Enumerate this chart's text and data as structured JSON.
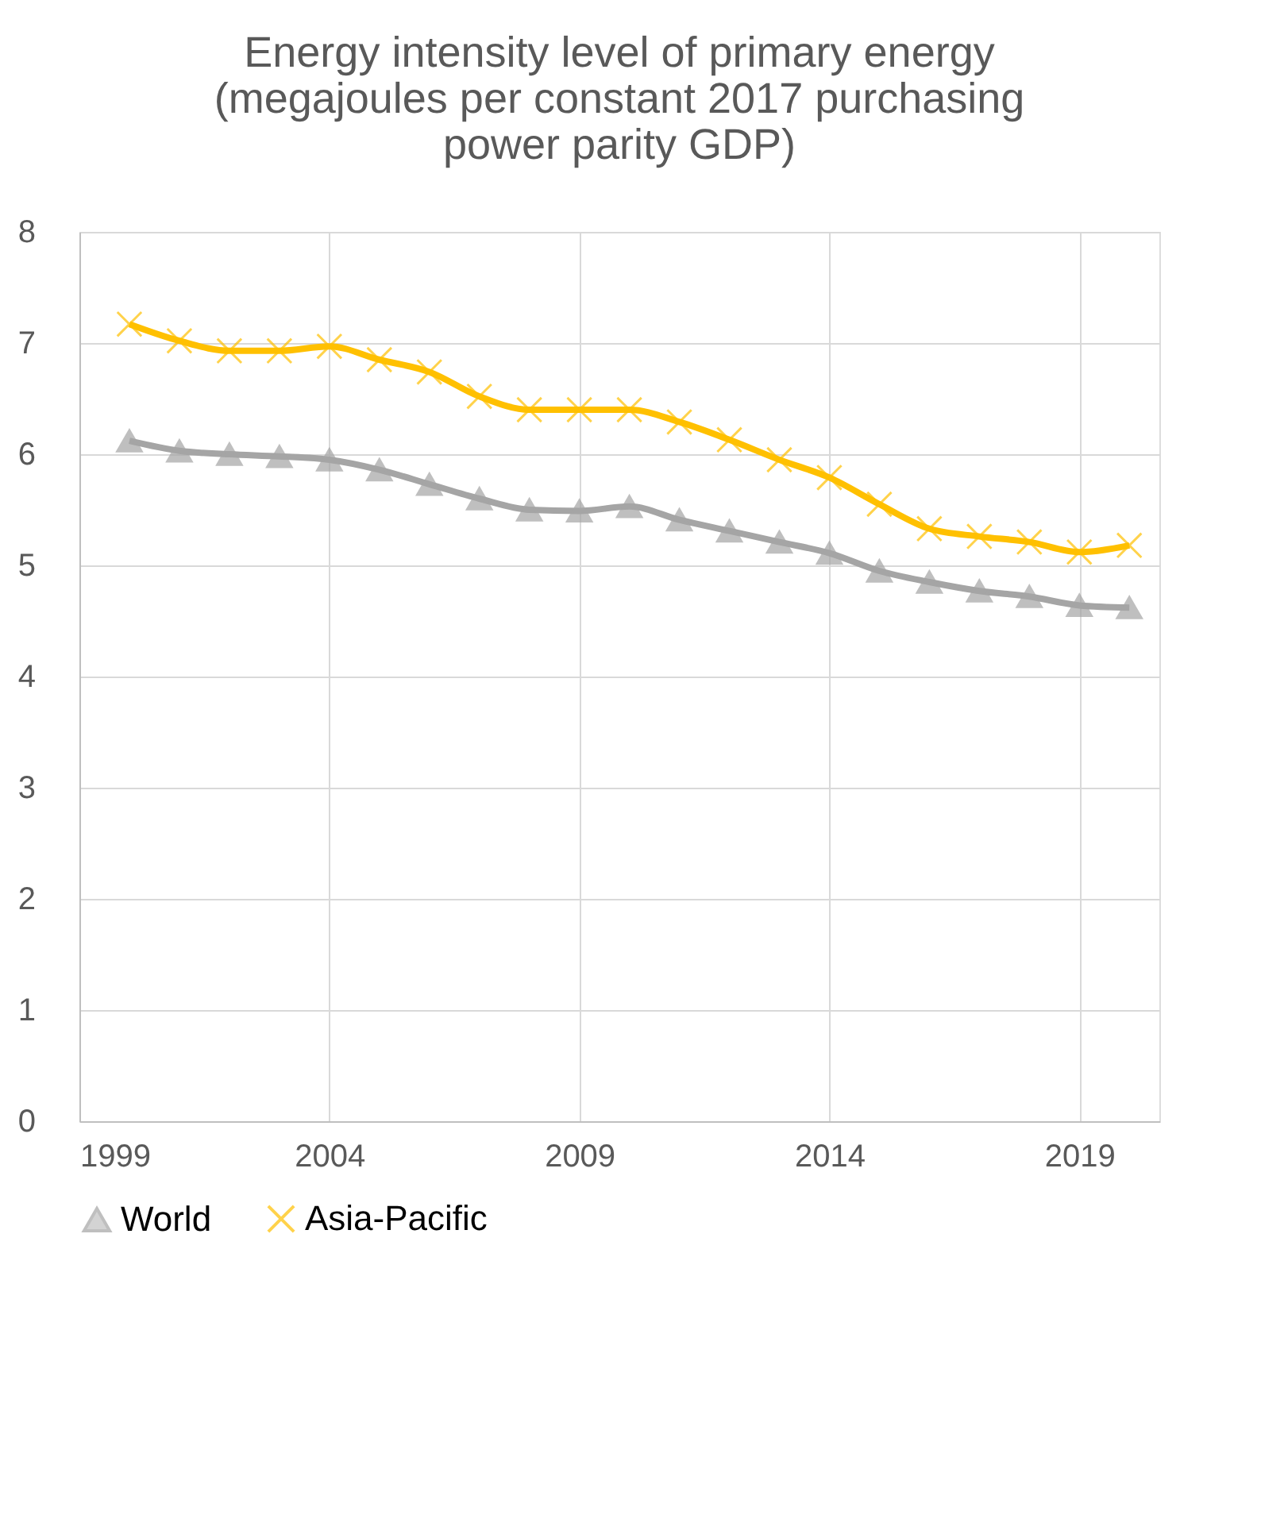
{
  "chart_data": {
    "type": "line",
    "title": "Energy intensity level of primary energy (megajoules per constant 2017 purchasing power parity GDP)",
    "x": [
      2000,
      2001,
      2002,
      2003,
      2004,
      2005,
      2006,
      2007,
      2008,
      2009,
      2010,
      2011,
      2012,
      2013,
      2014,
      2015,
      2016,
      2017,
      2018,
      2019,
      2020
    ],
    "series": [
      {
        "name": "World",
        "color": "#a5a5a5",
        "marker": "triangle",
        "values": [
          6.12,
          6.03,
          6.0,
          5.98,
          5.95,
          5.86,
          5.73,
          5.6,
          5.5,
          5.49,
          5.53,
          5.41,
          5.31,
          5.21,
          5.11,
          4.95,
          4.85,
          4.77,
          4.72,
          4.64,
          4.62
        ]
      },
      {
        "name": "Asia-Pacific",
        "color": "#ffc000",
        "marker": "cross",
        "values": [
          7.17,
          7.02,
          6.93,
          6.93,
          6.97,
          6.85,
          6.74,
          6.52,
          6.4,
          6.4,
          6.4,
          6.29,
          6.13,
          5.95,
          5.79,
          5.55,
          5.33,
          5.26,
          5.21,
          5.12,
          5.18
        ]
      }
    ],
    "xlim": [
      1999,
      2020.6
    ],
    "xticks": [
      1999,
      2004,
      2009,
      2014,
      2019
    ],
    "ylim": [
      0,
      8
    ],
    "yticks": [
      0,
      1,
      2,
      3,
      4,
      5,
      6,
      7,
      8
    ],
    "grid": true,
    "legend": "bottom",
    "line_style": "solid"
  }
}
